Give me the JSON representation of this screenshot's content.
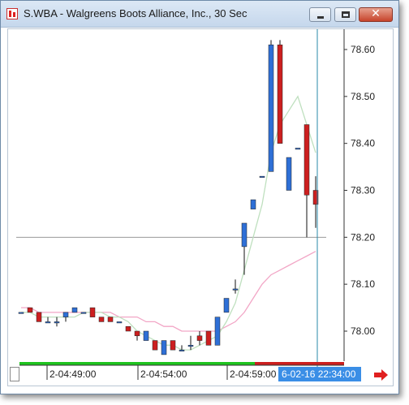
{
  "window": {
    "title": "S.WBA - Walgreens Boots Alliance, Inc., 30 Sec",
    "close_glyph": "✕"
  },
  "price_axis": {
    "labels": [
      "78.60",
      "78.50",
      "78.40",
      "78.30",
      "78.20",
      "78.10",
      "78.00"
    ],
    "values": [
      78.6,
      78.5,
      78.4,
      78.3,
      78.2,
      78.1,
      78.0
    ]
  },
  "time_axis": {
    "labels": [
      "2-04:49:00",
      "2-04:54:00",
      "2-04:59:00"
    ],
    "cursor_label": "6-02-16 22:34:00"
  },
  "colors": {
    "up": "#2e6fd6",
    "down": "#cc1f1f",
    "ma_fast": "#bfe0bf",
    "ma_slow": "#f2a6c6",
    "cursor": "#2a8aa8",
    "cursor_label_bg": "#3a8ee6",
    "horizontal_line": "#9a9a9a",
    "scroll_arrow": "#e02020"
  },
  "chart_data": {
    "type": "candlestick",
    "symbol": "S.WBA",
    "interval": "30 Sec",
    "ylim": [
      77.95,
      78.65
    ],
    "horizontal_line": 78.2,
    "candles": [
      {
        "o": 78.04,
        "h": 78.04,
        "l": 78.04,
        "c": 78.04
      },
      {
        "o": 78.05,
        "h": 78.05,
        "l": 78.04,
        "c": 78.04
      },
      {
        "o": 78.04,
        "h": 78.04,
        "l": 78.02,
        "c": 78.02
      },
      {
        "o": 78.02,
        "h": 78.03,
        "l": 78.02,
        "c": 78.02
      },
      {
        "o": 78.02,
        "h": 78.03,
        "l": 78.01,
        "c": 78.02
      },
      {
        "o": 78.03,
        "h": 78.04,
        "l": 78.02,
        "c": 78.04
      },
      {
        "o": 78.04,
        "h": 78.05,
        "l": 78.04,
        "c": 78.05
      },
      {
        "o": 78.04,
        "h": 78.04,
        "l": 78.04,
        "c": 78.04
      },
      {
        "o": 78.05,
        "h": 78.05,
        "l": 78.03,
        "c": 78.03
      },
      {
        "o": 78.03,
        "h": 78.03,
        "l": 78.02,
        "c": 78.02
      },
      {
        "o": 78.03,
        "h": 78.03,
        "l": 78.02,
        "c": 78.02
      },
      {
        "o": 78.02,
        "h": 78.02,
        "l": 78.02,
        "c": 78.02
      },
      {
        "o": 78.01,
        "h": 78.01,
        "l": 78.0,
        "c": 78.0
      },
      {
        "o": 78.0,
        "h": 78.0,
        "l": 77.98,
        "c": 77.99
      },
      {
        "o": 77.98,
        "h": 78.0,
        "l": 77.98,
        "c": 78.0
      },
      {
        "o": 77.98,
        "h": 77.98,
        "l": 77.96,
        "c": 77.96
      },
      {
        "o": 77.95,
        "h": 77.98,
        "l": 77.95,
        "c": 77.98
      },
      {
        "o": 77.98,
        "h": 77.98,
        "l": 77.96,
        "c": 77.96
      },
      {
        "o": 77.96,
        "h": 77.97,
        "l": 77.96,
        "c": 77.96
      },
      {
        "o": 77.97,
        "h": 77.99,
        "l": 77.96,
        "c": 77.97
      },
      {
        "o": 77.99,
        "h": 78.0,
        "l": 77.97,
        "c": 77.98
      },
      {
        "o": 78.0,
        "h": 78.0,
        "l": 77.97,
        "c": 77.97
      },
      {
        "o": 77.97,
        "h": 78.03,
        "l": 77.97,
        "c": 78.03
      },
      {
        "o": 78.04,
        "h": 78.07,
        "l": 78.04,
        "c": 78.07
      },
      {
        "o": 78.09,
        "h": 78.11,
        "l": 78.08,
        "c": 78.09
      },
      {
        "o": 78.18,
        "h": 78.23,
        "l": 78.12,
        "c": 78.23
      },
      {
        "o": 78.26,
        "h": 78.28,
        "l": 78.26,
        "c": 78.28
      },
      {
        "o": 78.33,
        "h": 78.33,
        "l": 78.33,
        "c": 78.33
      },
      {
        "o": 78.34,
        "h": 78.62,
        "l": 78.34,
        "c": 78.61
      },
      {
        "o": 78.61,
        "h": 78.62,
        "l": 78.4,
        "c": 78.4
      },
      {
        "o": 78.3,
        "h": 78.37,
        "l": 78.3,
        "c": 78.37
      },
      {
        "o": 78.39,
        "h": 78.39,
        "l": 78.39,
        "c": 78.39
      },
      {
        "o": 78.44,
        "h": 78.44,
        "l": 78.2,
        "c": 78.29
      },
      {
        "o": 78.3,
        "h": 78.33,
        "l": 78.22,
        "c": 78.27
      }
    ],
    "ma_fast": [
      78.04,
      78.04,
      78.03,
      78.03,
      78.03,
      78.03,
      78.03,
      78.04,
      78.04,
      78.04,
      78.03,
      78.03,
      78.02,
      78.0,
      77.99,
      77.98,
      77.97,
      77.97,
      77.96,
      77.96,
      77.97,
      77.98,
      77.99,
      78.02,
      78.06,
      78.13,
      78.2,
      78.27,
      78.38,
      78.44,
      78.47,
      78.5,
      78.44,
      78.38
    ],
    "ma_slow": [
      78.05,
      78.05,
      78.04,
      78.04,
      78.04,
      78.04,
      78.04,
      78.04,
      78.04,
      78.04,
      78.04,
      78.03,
      78.03,
      78.03,
      78.02,
      78.02,
      78.01,
      78.01,
      78.0,
      78.0,
      78.0,
      78.0,
      78.0,
      78.01,
      78.02,
      78.04,
      78.07,
      78.1,
      78.12,
      78.13,
      78.14,
      78.15,
      78.16,
      78.17
    ]
  }
}
